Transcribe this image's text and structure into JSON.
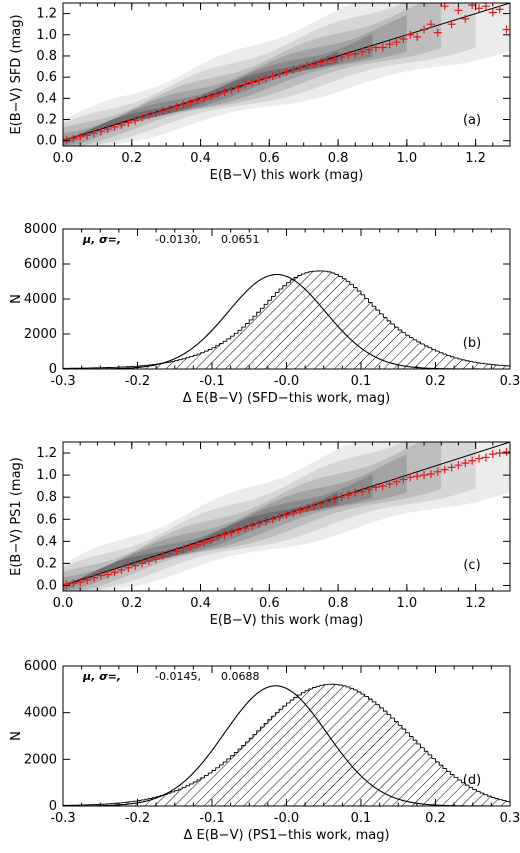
{
  "chart_data": [
    {
      "type": "scatter",
      "panel_label": "(a)",
      "xlabel": "E(B−V) this work (mag)",
      "ylabel": "E(B−V) SFD (mag)",
      "xlim": [
        0.0,
        1.3
      ],
      "ylim": [
        -0.05,
        1.3
      ],
      "xticks": [
        "0.0",
        "0.2",
        "0.4",
        "0.6",
        "0.8",
        "1.0",
        "1.2"
      ],
      "yticks": [
        "0.0",
        "0.2",
        "0.4",
        "0.6",
        "0.8",
        "1.0",
        "1.2"
      ],
      "density_contours": true,
      "fit_line": {
        "slope": 1.0,
        "intercept": 0.0
      },
      "marker_color": "#e31a1c",
      "series": [
        {
          "marker": "+",
          "x": [
            0.01,
            0.03,
            0.05,
            0.07,
            0.09,
            0.11,
            0.13,
            0.15,
            0.17,
            0.19,
            0.21,
            0.23,
            0.25,
            0.27,
            0.29,
            0.31,
            0.33,
            0.35,
            0.37,
            0.39,
            0.41,
            0.43,
            0.45,
            0.47,
            0.49,
            0.51,
            0.53,
            0.55,
            0.57,
            0.59,
            0.61,
            0.63,
            0.65,
            0.67,
            0.69,
            0.71,
            0.73,
            0.75,
            0.77,
            0.79,
            0.81,
            0.83,
            0.85,
            0.87,
            0.89,
            0.91,
            0.93,
            0.95,
            0.97,
            0.99,
            1.01,
            1.03,
            1.05,
            1.07,
            1.09,
            1.11,
            1.13,
            1.15,
            1.17,
            1.19,
            1.21,
            1.23,
            1.25,
            1.27,
            1.29
          ],
          "y": [
            0.01,
            0.02,
            0.04,
            0.05,
            0.07,
            0.09,
            0.11,
            0.13,
            0.15,
            0.17,
            0.19,
            0.22,
            0.24,
            0.26,
            0.28,
            0.3,
            0.32,
            0.34,
            0.36,
            0.38,
            0.4,
            0.42,
            0.44,
            0.46,
            0.48,
            0.5,
            0.53,
            0.55,
            0.57,
            0.59,
            0.61,
            0.63,
            0.65,
            0.67,
            0.69,
            0.71,
            0.72,
            0.74,
            0.76,
            0.77,
            0.79,
            0.81,
            0.82,
            0.84,
            0.86,
            0.88,
            0.88,
            0.91,
            0.93,
            0.96,
            1.0,
            0.98,
            1.05,
            1.1,
            1.02,
            1.27,
            1.1,
            1.23,
            1.15,
            1.28,
            1.25,
            1.27,
            1.21,
            1.24,
            1.05
          ]
        }
      ]
    },
    {
      "type": "bar",
      "style": "hatched-histogram",
      "panel_label": "(b)",
      "annotation": {
        "label": "μ, σ=,",
        "mu": "-0.0130,",
        "sigma": "0.0651"
      },
      "xlabel": "Δ E(B−V) (SFD−this work, mag)",
      "ylabel": "N",
      "xlim": [
        -0.3,
        0.3
      ],
      "ylim": [
        0,
        8000
      ],
      "xticks": [
        "-0.3",
        "-0.2",
        "-0.1",
        "-0.0",
        "0.1",
        "0.2",
        "0.3"
      ],
      "yticks": [
        "0",
        "2000",
        "4000",
        "6000",
        "8000"
      ],
      "bin_width": 0.005,
      "gaussian_fit": {
        "mu": -0.013,
        "sigma": 0.0651,
        "peak": 5400
      },
      "values": [
        36,
        39,
        42,
        45,
        48,
        52,
        56,
        60,
        64,
        69,
        74,
        79,
        85,
        92,
        99,
        108,
        117,
        128,
        140,
        155,
        171,
        189,
        210,
        233,
        259,
        288,
        319,
        354,
        392,
        434,
        480,
        530,
        584,
        644,
        709,
        779,
        855,
        935,
        1022,
        1117,
        1219,
        1330,
        1450,
        1581,
        1724,
        1876,
        2039,
        2213,
        2399,
        2596,
        2804,
        3020,
        3243,
        3469,
        3697,
        3925,
        4149,
        4365,
        4569,
        4757,
        4931,
        5089,
        5228,
        5344,
        5435,
        5506,
        5559,
        5589,
        5600,
        5604,
        5588,
        5550,
        5486,
        5402,
        5292,
        5161,
        5010,
        4839,
        4652,
        4452,
        4240,
        4024,
        3804,
        3584,
        3364,
        3151,
        2945,
        2750,
        2566,
        2393,
        2229,
        2076,
        1932,
        1796,
        1668,
        1547,
        1432,
        1323,
        1219,
        1120,
        1025,
        935,
        851,
        773,
        700,
        634,
        574,
        521,
        472,
        429,
        390,
        356,
        325,
        297,
        272,
        250,
        229,
        211,
        194,
        179,
        165
      ]
    },
    {
      "type": "scatter",
      "panel_label": "(c)",
      "xlabel": "E(B−V) this work (mag)",
      "ylabel": "E(B−V) PS1 (mag)",
      "xlim": [
        0.0,
        1.3
      ],
      "ylim": [
        -0.05,
        1.3
      ],
      "xticks": [
        "0.0",
        "0.2",
        "0.4",
        "0.6",
        "0.8",
        "1.0",
        "1.2"
      ],
      "yticks": [
        "0.0",
        "0.2",
        "0.4",
        "0.6",
        "0.8",
        "1.0",
        "1.2"
      ],
      "density_contours": true,
      "fit_line": {
        "slope": 1.0,
        "intercept": 0.0
      },
      "marker_color": "#e31a1c",
      "series": [
        {
          "marker": "+",
          "x": [
            0.01,
            0.03,
            0.05,
            0.07,
            0.09,
            0.11,
            0.13,
            0.15,
            0.17,
            0.19,
            0.21,
            0.23,
            0.25,
            0.27,
            0.29,
            0.31,
            0.33,
            0.35,
            0.37,
            0.39,
            0.41,
            0.43,
            0.45,
            0.47,
            0.49,
            0.51,
            0.53,
            0.55,
            0.57,
            0.59,
            0.61,
            0.63,
            0.65,
            0.67,
            0.69,
            0.71,
            0.73,
            0.75,
            0.77,
            0.79,
            0.81,
            0.83,
            0.85,
            0.87,
            0.89,
            0.91,
            0.93,
            0.95,
            0.97,
            0.99,
            1.01,
            1.03,
            1.05,
            1.07,
            1.09,
            1.11,
            1.13,
            1.15,
            1.17,
            1.19,
            1.21,
            1.23,
            1.25,
            1.27,
            1.29
          ],
          "y": [
            0.01,
            0.02,
            0.03,
            0.05,
            0.07,
            0.09,
            0.1,
            0.12,
            0.14,
            0.16,
            0.18,
            0.2,
            0.22,
            0.24,
            0.27,
            0.29,
            0.31,
            0.33,
            0.35,
            0.37,
            0.39,
            0.41,
            0.44,
            0.46,
            0.48,
            0.5,
            0.52,
            0.54,
            0.56,
            0.58,
            0.6,
            0.62,
            0.64,
            0.66,
            0.68,
            0.7,
            0.72,
            0.74,
            0.76,
            0.78,
            0.8,
            0.82,
            0.84,
            0.85,
            0.87,
            0.89,
            0.9,
            0.92,
            0.94,
            0.96,
            0.98,
            0.99,
            1.0,
            1.01,
            1.03,
            1.05,
            1.07,
            1.09,
            1.11,
            1.13,
            1.15,
            1.16,
            1.19,
            1.2,
            1.21
          ]
        }
      ]
    },
    {
      "type": "bar",
      "style": "hatched-histogram",
      "panel_label": "(d)",
      "annotation": {
        "label": "μ, σ=,",
        "mu": "-0.0145,",
        "sigma": "0.0688"
      },
      "xlabel": "Δ E(B−V) (PS1−this work, mag)",
      "ylabel": "N",
      "xlim": [
        -0.3,
        0.3
      ],
      "ylim": [
        0,
        6000
      ],
      "xticks": [
        "-0.3",
        "-0.2",
        "-0.1",
        "-0.0",
        "0.1",
        "0.2",
        "0.3"
      ],
      "yticks": [
        "0",
        "2000",
        "4000",
        "6000"
      ],
      "bin_width": 0.005,
      "gaussian_fit": {
        "mu": -0.0145,
        "sigma": 0.0688,
        "peak": 5150
      },
      "values": [
        28,
        31,
        34,
        37,
        41,
        45,
        50,
        55,
        61,
        68,
        75,
        84,
        94,
        105,
        118,
        132,
        148,
        166,
        186,
        208,
        233,
        261,
        291,
        325,
        362,
        402,
        446,
        494,
        546,
        602,
        662,
        726,
        795,
        868,
        946,
        1029,
        1117,
        1210,
        1309,
        1413,
        1522,
        1637,
        1758,
        1884,
        2016,
        2154,
        2296,
        2442,
        2593,
        2747,
        2904,
        3062,
        3222,
        3381,
        3539,
        3696,
        3850,
        4000,
        4145,
        4284,
        4416,
        4540,
        4655,
        4760,
        4856,
        4941,
        5016,
        5079,
        5131,
        5171,
        5199,
        5215,
        5218,
        5208,
        5186,
        5151,
        5103,
        5044,
        4973,
        4891,
        4799,
        4697,
        4586,
        4467,
        4340,
        4206,
        4066,
        3920,
        3770,
        3616,
        3459,
        3300,
        3140,
        2979,
        2818,
        2658,
        2499,
        2343,
        2189,
        2038,
        1891,
        1748,
        1609,
        1476,
        1348,
        1226,
        1111,
        1001,
        898,
        802,
        712,
        630,
        554,
        485,
        423,
        366,
        316,
        271,
        231,
        196
      ]
    }
  ]
}
